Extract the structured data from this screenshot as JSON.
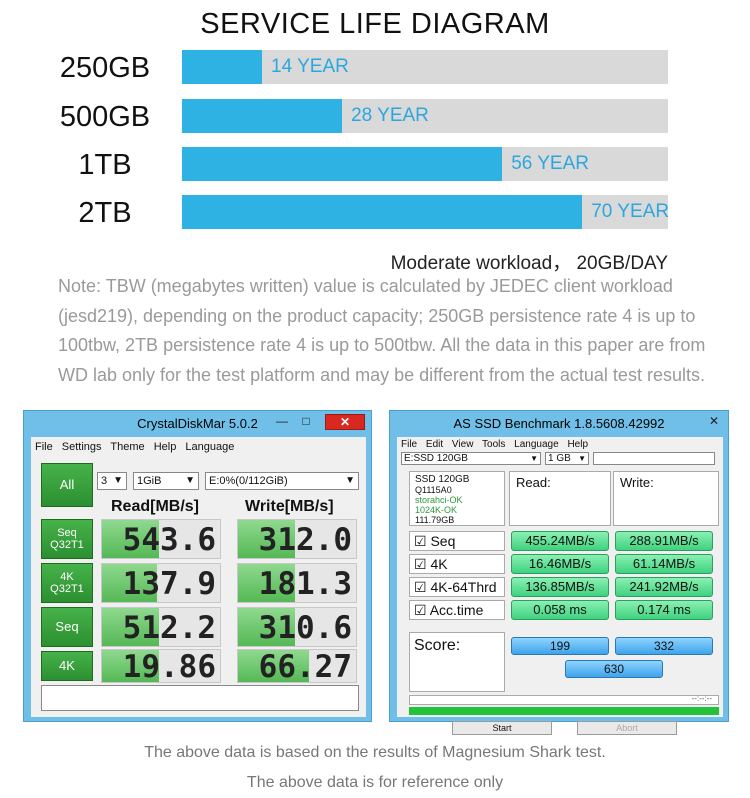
{
  "chart_data": {
    "type": "bar",
    "title": "SERVICE LIFE DIAGRAM",
    "categories": [
      "250GB",
      "500GB",
      "1TB",
      "2TB"
    ],
    "values": [
      14,
      28,
      56,
      70
    ],
    "value_labels": [
      "14 YEAR",
      "28 YEAR",
      "56 YEAR",
      "70 YEAR"
    ],
    "xlim": [
      0,
      85
    ],
    "orientation": "horizontal",
    "colors": {
      "fill": "#2eb2e4",
      "track": "#d9d9d9",
      "label": "#2aa7de"
    }
  },
  "workload_text": "Moderate workload， 20GB/DAY",
  "note_text": "Note: TBW (megabytes written) value is calculated by JEDEC client workload (jesd219), depending on the product capacity; 250GB persistence rate 4 is up to 100tbw, 2TB persistence rate 4 is up to 500tbw. All the data in this paper are from WD lab only for the test platform and may be different from the actual test results.",
  "crystaldiskmark": {
    "title": "CrystalDiskMar 5.0.2",
    "menu": [
      "File",
      "Settings",
      "Theme",
      "Help",
      "Language"
    ],
    "all_button": "All",
    "count": "3",
    "size": "1GiB",
    "drive": "E:0%(0/112GiB)",
    "read_header": "Read[MB/s]",
    "write_header": "Write[MB/s]",
    "rows": [
      {
        "label_line1": "Seq",
        "label_line2": "Q32T1",
        "read": "543.6",
        "write": "312.0",
        "read_fill": 0.48,
        "write_fill": 0.48
      },
      {
        "label_line1": "4K",
        "label_line2": "Q32T1",
        "read": "137.9",
        "write": "181.3",
        "read_fill": 0.47,
        "write_fill": 0.48
      },
      {
        "label_line1": "Seq",
        "label_line2": "",
        "read": "512.2",
        "write": "310.6",
        "read_fill": 0.48,
        "write_fill": 0.48
      },
      {
        "label_line1": "4K",
        "label_line2": "",
        "read": "19.86",
        "write": "66.27",
        "read_fill": 0.48,
        "write_fill": 0.6
      }
    ]
  },
  "asssd": {
    "title": "AS SSD Benchmark 1.8.5608.42992",
    "menu": [
      "File",
      "Edit",
      "View",
      "Tools",
      "Language",
      "Help"
    ],
    "drive": "E:SSD 120GB",
    "size": "1 GB",
    "info": [
      "SSD 120GB",
      "Q1115A0",
      "storahci-OK",
      "1024K-OK",
      "111.79GB"
    ],
    "read_header": "Read:",
    "write_header": "Write:",
    "rows": [
      {
        "label": "Seq",
        "read": "455.24MB/s",
        "write": "288.91MB/s"
      },
      {
        "label": "4K",
        "read": "16.46MB/s",
        "write": "61.14MB/s"
      },
      {
        "label": "4K-64Thrd",
        "read": "136.85MB/s",
        "write": "241.92MB/s"
      },
      {
        "label": "Acc.time",
        "read": "0.058 ms",
        "write": "0.174 ms"
      }
    ],
    "score_label": "Score:",
    "score_read": "199",
    "score_write": "332",
    "score_total": "630",
    "time_text": "--:--:--",
    "start_label": "Start",
    "abort_label": "Abort"
  },
  "footer_line1": "The above data is based on the results of Magnesium Shark test.",
  "footer_line2": "The above data is for reference only"
}
